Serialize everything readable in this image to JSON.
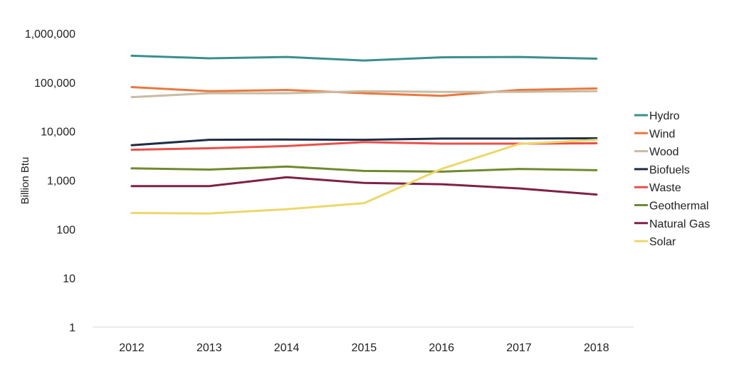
{
  "chart_data": {
    "type": "line",
    "title": "",
    "xlabel": "",
    "ylabel": "Billion Btu",
    "yscale": "log",
    "ylim": [
      1,
      1000000
    ],
    "grid": false,
    "legend_position": "right",
    "categories": [
      "2012",
      "2013",
      "2014",
      "2015",
      "2016",
      "2017",
      "2018"
    ],
    "y_ticks": [
      {
        "value": 1,
        "label": "1"
      },
      {
        "value": 10,
        "label": "10"
      },
      {
        "value": 100,
        "label": "100"
      },
      {
        "value": 1000,
        "label": "1,000"
      },
      {
        "value": 10000,
        "label": "10,000"
      },
      {
        "value": 100000,
        "label": "100,000"
      },
      {
        "value": 1000000,
        "label": "1,000,000"
      }
    ],
    "series": [
      {
        "name": "Hydro",
        "color": "#3a8f8c",
        "values": [
          350000,
          310000,
          330000,
          280000,
          325000,
          330000,
          305000
        ]
      },
      {
        "name": "Wind",
        "color": "#e8793f",
        "values": [
          80000,
          66000,
          70000,
          60000,
          53000,
          70000,
          75000
        ]
      },
      {
        "name": "Wood",
        "color": "#c8bca4",
        "values": [
          50000,
          60000,
          60000,
          66000,
          64000,
          64000,
          66000
        ]
      },
      {
        "name": "Biofuels",
        "color": "#1f2d45",
        "values": [
          5200,
          6700,
          6800,
          6700,
          7100,
          7100,
          7200
        ]
      },
      {
        "name": "Waste",
        "color": "#e8504a",
        "values": [
          4200,
          4500,
          5000,
          6000,
          5600,
          5600,
          5700
        ]
      },
      {
        "name": "Geothermal",
        "color": "#6f8a2e",
        "values": [
          1750,
          1650,
          1900,
          1550,
          1500,
          1700,
          1600
        ]
      },
      {
        "name": "Natural Gas",
        "color": "#7e2148",
        "values": [
          760,
          760,
          1150,
          880,
          830,
          680,
          510
        ]
      },
      {
        "name": "Solar",
        "color": "#ecd769",
        "values": [
          215,
          210,
          255,
          340,
          1700,
          5500,
          6700
        ]
      }
    ]
  }
}
